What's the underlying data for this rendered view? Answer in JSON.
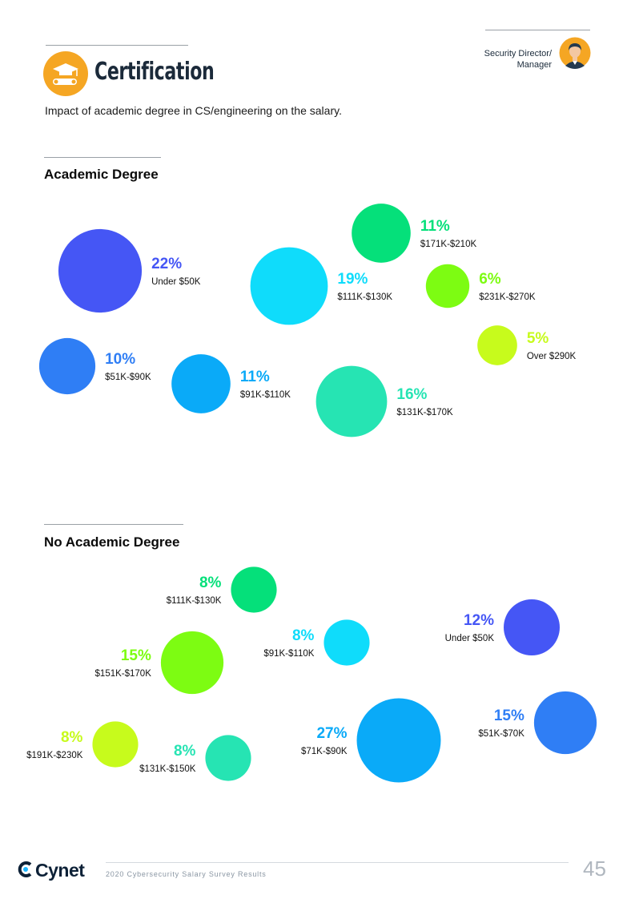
{
  "header": {
    "title": "Certification",
    "subtitle": "Impact of academic degree in CS/engineering on the salary.",
    "role": [
      "Security Director/",
      "Manager"
    ]
  },
  "footer": {
    "brand": "Cynet",
    "report": "2020 Cybersecurity Salary Survey Results",
    "page": "45"
  },
  "chart_data": [
    {
      "type": "bubble",
      "title": "Academic Degree",
      "series": [
        {
          "category": "Under $50K",
          "value": 22,
          "label": "22%",
          "color": "#4556f5"
        },
        {
          "category": "$51K-$90K",
          "value": 10,
          "label": "10%",
          "color": "#2f7ef5"
        },
        {
          "category": "$91K-$110K",
          "value": 11,
          "label": "11%",
          "color": "#0aaaf8"
        },
        {
          "category": "$111K-$130K",
          "value": 19,
          "label": "19%",
          "color": "#0fdcfb"
        },
        {
          "category": "$131K-$170K",
          "value": 16,
          "label": "16%",
          "color": "#26e4b3"
        },
        {
          "category": "$171K-$210K",
          "value": 11,
          "label": "11%",
          "color": "#05e07a"
        },
        {
          "category": "$231K-$270K",
          "value": 6,
          "label": "6%",
          "color": "#7dfc12"
        },
        {
          "category": "Over $290K",
          "value": 5,
          "label": "5%",
          "color": "#c7fb1c"
        }
      ]
    },
    {
      "type": "bubble",
      "title": "No Academic Degree",
      "series": [
        {
          "category": "$111K-$130K",
          "value": 8,
          "label": "8%",
          "color": "#05e07a"
        },
        {
          "category": "Under $50K",
          "value": 12,
          "label": "12%",
          "color": "#4556f5"
        },
        {
          "category": "$151K-$170K",
          "value": 15,
          "label": "15%",
          "color": "#7dfc12"
        },
        {
          "category": "$91K-$110K",
          "value": 8,
          "label": "8%",
          "color": "#0fdcfb"
        },
        {
          "category": "$51K-$70K",
          "value": 15,
          "label": "15%",
          "color": "#2f7ef5"
        },
        {
          "category": "$191K-$230K",
          "value": 8,
          "label": "8%",
          "color": "#c7fb1c"
        },
        {
          "category": "$131K-$150K",
          "value": 8,
          "label": "8%",
          "color": "#26e4b3"
        },
        {
          "category": "$71K-$90K",
          "value": 27,
          "label": "27%",
          "color": "#0aaaf8"
        }
      ]
    }
  ]
}
